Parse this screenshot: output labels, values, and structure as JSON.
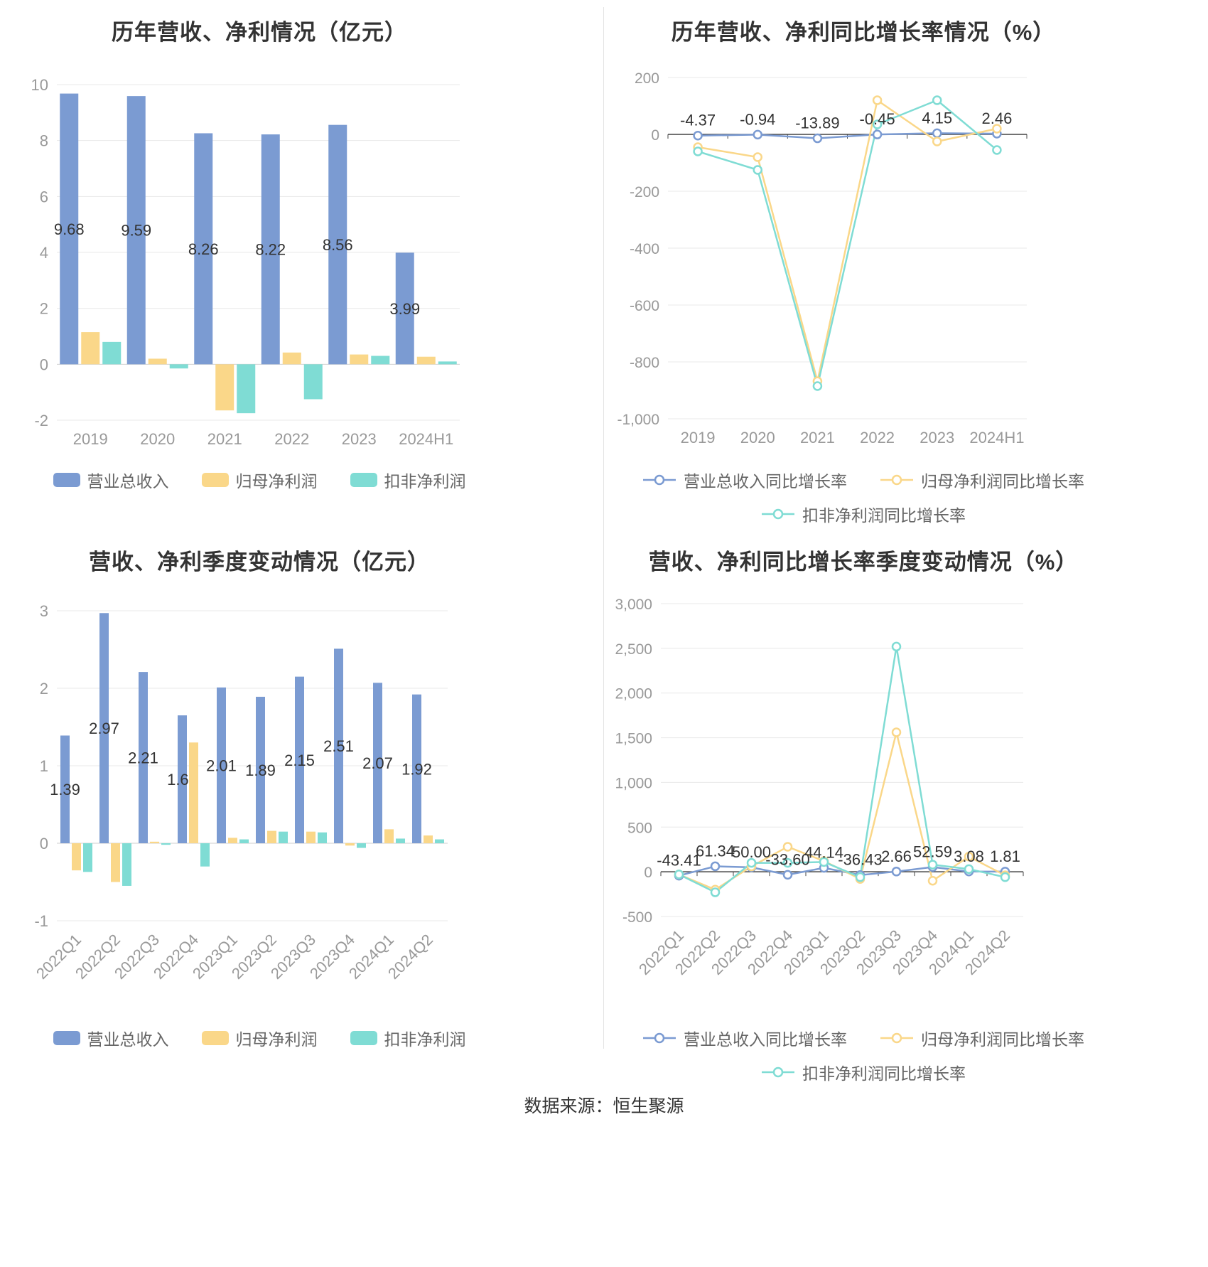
{
  "page": {
    "footer_source": "数据来源：恒生聚源"
  },
  "colors": {
    "revenue_blue": "#7B9BD2",
    "profit_yellow": "#FAD789",
    "nonrecurring_teal": "#7FDCD4",
    "title_text": "#333333",
    "axis_text": "#999999",
    "grid_line": "#e8e8e8",
    "zero_axis": "#444444",
    "legend_text": "#666666"
  },
  "chart_data": [
    {
      "type": "bar",
      "title": "历年营收、净利情况（亿元）",
      "categories": [
        "2019",
        "2020",
        "2021",
        "2022",
        "2023",
        "2024H1"
      ],
      "ylim": [
        -2,
        10
      ],
      "yticks": [
        10,
        8,
        6,
        4,
        2,
        0,
        -2
      ],
      "grid": true,
      "legend_position": "bottom",
      "series": [
        {
          "key": "revenue",
          "name": "营业总收入",
          "color": "#7B9BD2",
          "values": [
            9.68,
            9.59,
            8.26,
            8.22,
            8.56,
            3.99
          ],
          "labels": [
            "9.68",
            "9.59",
            "8.26",
            "8.22",
            "8.56",
            "3.99"
          ]
        },
        {
          "key": "net-profit",
          "name": "归母净利润",
          "color": "#FAD789",
          "values": [
            1.15,
            0.2,
            -1.65,
            0.42,
            0.35,
            0.27
          ]
        },
        {
          "key": "non-gaap-profit",
          "name": "扣非净利润",
          "color": "#7FDCD4",
          "values": [
            0.8,
            -0.15,
            -1.75,
            -1.25,
            0.3,
            0.1
          ]
        }
      ]
    },
    {
      "type": "line",
      "title": "历年营收、净利同比增长率情况（%）",
      "categories": [
        "2019",
        "2020",
        "2021",
        "2022",
        "2023",
        "2024H1"
      ],
      "ylim": [
        -1000,
        200
      ],
      "yticks": [
        200,
        0,
        -200,
        -400,
        -600,
        -800,
        -1000
      ],
      "grid": true,
      "legend_position": "bottom",
      "series": [
        {
          "key": "revenue-growth",
          "name": "营业总收入同比增长率",
          "color": "#7B9BD2",
          "values": [
            -4.37,
            -0.94,
            -13.89,
            -0.45,
            4.15,
            2.46
          ],
          "labels": [
            "-4.37",
            "-0.94",
            "-13.89",
            "-0.45",
            "4.15",
            "2.46"
          ]
        },
        {
          "key": "net-profit-growth",
          "name": "归母净利润同比增长率",
          "color": "#FAD789",
          "values": [
            -45,
            -80,
            -868,
            120,
            -25,
            20
          ]
        },
        {
          "key": "non-gaap-profit-growth",
          "name": "扣非净利润同比增长率",
          "color": "#7FDCD4",
          "values": [
            -60,
            -125,
            -885,
            35,
            120,
            -55
          ]
        }
      ]
    },
    {
      "type": "bar",
      "title": "营收、净利季度变动情况（亿元）",
      "categories": [
        "2022Q1",
        "2022Q2",
        "2022Q3",
        "2022Q4",
        "2023Q1",
        "2023Q2",
        "2023Q3",
        "2023Q4",
        "2024Q1",
        "2024Q2"
      ],
      "ylim": [
        -1,
        3
      ],
      "yticks": [
        3,
        2,
        1,
        0,
        -1
      ],
      "grid": true,
      "legend_position": "bottom",
      "series": [
        {
          "key": "revenue",
          "name": "营业总收入",
          "color": "#7B9BD2",
          "values": [
            1.39,
            2.97,
            2.21,
            1.65,
            2.01,
            1.89,
            2.15,
            2.51,
            2.07,
            1.92
          ],
          "labels": [
            "1.39",
            "2.97",
            "2.21",
            "1.65",
            "2.01",
            "1.89",
            "2.15",
            "2.51",
            "2.07",
            "1.92"
          ]
        },
        {
          "key": "net-profit",
          "name": "归母净利润",
          "color": "#FAD789",
          "values": [
            -0.35,
            -0.5,
            0.02,
            1.3,
            0.07,
            0.16,
            0.15,
            -0.03,
            0.18,
            0.1
          ]
        },
        {
          "key": "non-gaap-profit",
          "name": "扣非净利润",
          "color": "#7FDCD4",
          "values": [
            -0.37,
            -0.55,
            -0.02,
            -0.3,
            0.05,
            0.15,
            0.14,
            -0.06,
            0.06,
            0.05
          ]
        }
      ]
    },
    {
      "type": "line",
      "title": "营收、净利同比增长率季度变动情况（%）",
      "categories": [
        "2022Q1",
        "2022Q2",
        "2022Q3",
        "2022Q4",
        "2023Q1",
        "2023Q2",
        "2023Q3",
        "2023Q4",
        "2024Q1",
        "2024Q2"
      ],
      "ylim": [
        -500,
        3000
      ],
      "yticks": [
        3000,
        2500,
        2000,
        1500,
        1000,
        500,
        0,
        -500
      ],
      "grid": true,
      "legend_position": "bottom",
      "series": [
        {
          "key": "revenue-growth",
          "name": "营业总收入同比增长率",
          "color": "#7B9BD2",
          "values": [
            -43.41,
            61.34,
            50.0,
            -33.6,
            44.14,
            -36.43,
            2.66,
            52.59,
            3.08,
            1.81
          ],
          "labels": [
            "-43.41",
            "61.34",
            "50.00",
            "-33.60",
            "44.14",
            "-36.43",
            "2.66",
            "52.59",
            "3.08",
            "1.81"
          ]
        },
        {
          "key": "net-profit-growth",
          "name": "归母净利润同比增长率",
          "color": "#FAD789",
          "values": [
            -30,
            -200,
            60,
            280,
            120,
            -80,
            1560,
            -100,
            170,
            -40
          ]
        },
        {
          "key": "non-gaap-profit-growth",
          "name": "扣非净利润同比增长率",
          "color": "#7FDCD4",
          "values": [
            -30,
            -230,
            100,
            100,
            110,
            -60,
            2520,
            80,
            30,
            -60
          ]
        }
      ]
    }
  ]
}
